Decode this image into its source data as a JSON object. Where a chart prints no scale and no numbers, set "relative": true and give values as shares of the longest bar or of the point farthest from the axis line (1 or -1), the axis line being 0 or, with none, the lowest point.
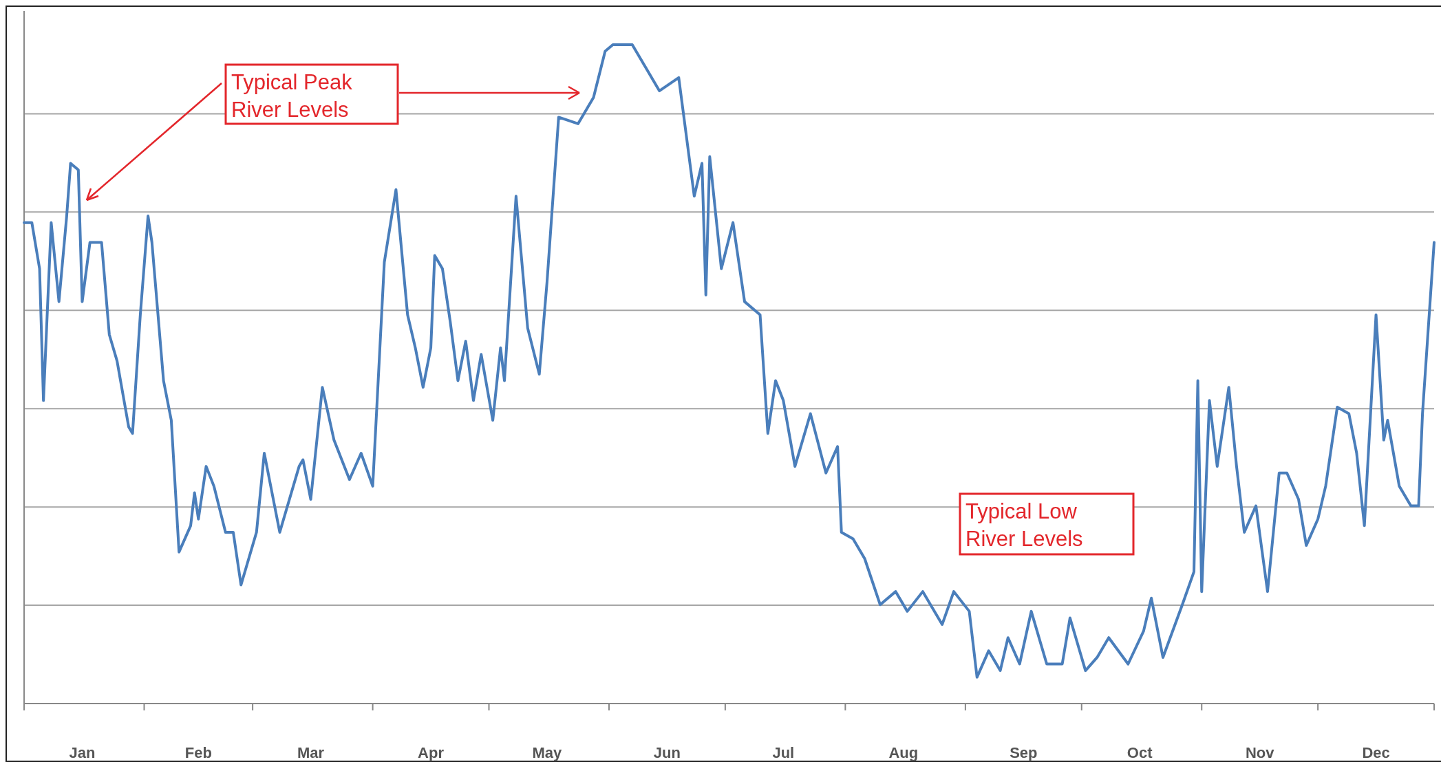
{
  "chart_data": {
    "type": "line",
    "relative": true,
    "grid": "y",
    "marker": "none",
    "line_style": "solid",
    "xlim": [
      "--01-01",
      "--12-31"
    ],
    "xticks": [
      {
        "value": "--01-01",
        "label": null
      },
      {
        "value": "--01-16",
        "label": "Jan"
      },
      {
        "value": "--02-01",
        "label": null
      },
      {
        "value": "--02-15",
        "label": "Feb"
      },
      {
        "value": "--03-01",
        "label": null
      },
      {
        "value": "--03-16",
        "label": "Mar"
      },
      {
        "value": "--04-01",
        "label": null
      },
      {
        "value": "--04-16",
        "label": "Apr"
      },
      {
        "value": "--05-01",
        "label": null
      },
      {
        "value": "--05-16",
        "label": "May"
      },
      {
        "value": "--06-01",
        "label": null
      },
      {
        "value": "--06-16",
        "label": "Jun"
      },
      {
        "value": "--07-01",
        "label": null
      },
      {
        "value": "--07-16",
        "label": "Jul"
      },
      {
        "value": "--08-01",
        "label": null
      },
      {
        "value": "--08-16",
        "label": "Aug"
      },
      {
        "value": "--09-01",
        "label": null
      },
      {
        "value": "--09-16",
        "label": "Sep"
      },
      {
        "value": "--10-01",
        "label": null
      },
      {
        "value": "--10-16",
        "label": "Oct"
      },
      {
        "value": "--11-01",
        "label": null
      },
      {
        "value": "--11-16",
        "label": "Nov"
      },
      {
        "value": "--12-01",
        "label": null
      },
      {
        "value": "--12-16",
        "label": "Dec"
      },
      {
        "value": "--12-31",
        "label": null
      }
    ],
    "series": [
      {
        "color": "#4a7ebb",
        "x": [
          "--01-01",
          "--01-03",
          "--01-05",
          "--01-06",
          "--01-08",
          "--01-10",
          "--01-12",
          "--01-13",
          "--01-15",
          "--01-16",
          "--01-18",
          "--01-21",
          "--01-23",
          "--01-25",
          "--01-28",
          "--01-29",
          "--01-31",
          "--02-02",
          "--02-03",
          "--02-06",
          "--02-08",
          "--02-10",
          "--02-13",
          "--02-14",
          "--02-15",
          "--02-17",
          "--02-19",
          "--02-22",
          "--02-24",
          "--02-26",
          "--03-02",
          "--03-04",
          "--03-08",
          "--03-13",
          "--03-14",
          "--03-16",
          "--03-19",
          "--03-22",
          "--03-26",
          "--03-29",
          "--04-01",
          "--04-04",
          "--04-07",
          "--04-10",
          "--04-12",
          "--04-14",
          "--04-16",
          "--04-17",
          "--04-19",
          "--04-21",
          "--04-23",
          "--04-25",
          "--04-27",
          "--04-29",
          "--05-02",
          "--05-04",
          "--05-05",
          "--05-08",
          "--05-11",
          "--05-14",
          "--05-16",
          "--05-19",
          "--05-24",
          "--05-28",
          "--05-31",
          "--06-02",
          "--06-07",
          "--06-11",
          "--06-14",
          "--06-19",
          "--06-23",
          "--06-25",
          "--06-26",
          "--06-27",
          "--06-30",
          "--07-03",
          "--07-06",
          "--07-10",
          "--07-12",
          "--07-14",
          "--07-16",
          "--07-19",
          "--07-23",
          "--07-27",
          "--07-30",
          "--07-31",
          "--08-03",
          "--08-06",
          "--08-10",
          "--08-14",
          "--08-17",
          "--08-21",
          "--08-26",
          "--08-29",
          "--09-02",
          "--09-04",
          "--09-07",
          "--09-10",
          "--09-12",
          "--09-15",
          "--09-18",
          "--09-22",
          "--09-26",
          "--09-28",
          "--10-02",
          "--10-05",
          "--10-08",
          "--10-13",
          "--10-17",
          "--10-19",
          "--10-22",
          "--10-27",
          "--10-30",
          "--10-31",
          "--11-01",
          "--11-03",
          "--11-05",
          "--11-08",
          "--11-10",
          "--11-12",
          "--11-15",
          "--11-18",
          "--11-21",
          "--11-23",
          "--11-26",
          "--11-28",
          "--12-01",
          "--12-03",
          "--12-06",
          "--12-09",
          "--12-11",
          "--12-13",
          "--12-16",
          "--12-18",
          "--12-19",
          "--12-22",
          "--12-25",
          "--12-27",
          "--12-28",
          "--12-31"
        ],
        "values": [
          0.73,
          0.73,
          0.66,
          0.46,
          0.73,
          0.61,
          0.74,
          0.82,
          0.81,
          0.61,
          0.7,
          0.7,
          0.56,
          0.52,
          0.42,
          0.41,
          0.59,
          0.74,
          0.7,
          0.49,
          0.43,
          0.23,
          0.27,
          0.32,
          0.28,
          0.36,
          0.33,
          0.26,
          0.26,
          0.18,
          0.26,
          0.38,
          0.26,
          0.36,
          0.37,
          0.31,
          0.48,
          0.4,
          0.34,
          0.38,
          0.33,
          0.67,
          0.78,
          0.59,
          0.54,
          0.48,
          0.54,
          0.68,
          0.66,
          0.58,
          0.49,
          0.55,
          0.46,
          0.53,
          0.43,
          0.54,
          0.49,
          0.77,
          0.57,
          0.5,
          0.64,
          0.89,
          0.88,
          0.92,
          0.99,
          1.0,
          1.0,
          0.96,
          0.93,
          0.95,
          0.77,
          0.82,
          0.62,
          0.83,
          0.66,
          0.73,
          0.61,
          0.59,
          0.41,
          0.49,
          0.46,
          0.36,
          0.44,
          0.35,
          0.39,
          0.26,
          0.25,
          0.22,
          0.15,
          0.17,
          0.14,
          0.17,
          0.12,
          0.17,
          0.14,
          0.04,
          0.08,
          0.05,
          0.1,
          0.06,
          0.14,
          0.06,
          0.06,
          0.13,
          0.05,
          0.07,
          0.1,
          0.06,
          0.11,
          0.16,
          0.07,
          0.15,
          0.2,
          0.49,
          0.17,
          0.46,
          0.36,
          0.48,
          0.36,
          0.26,
          0.3,
          0.17,
          0.35,
          0.35,
          0.31,
          0.24,
          0.28,
          0.33,
          0.45,
          0.44,
          0.38,
          0.27,
          0.59,
          0.4,
          0.43,
          0.33,
          0.3,
          0.3,
          0.44,
          0.7
        ]
      }
    ],
    "annotations": [
      "Typical Peak River Levels",
      "Typical Low River Levels"
    ]
  }
}
